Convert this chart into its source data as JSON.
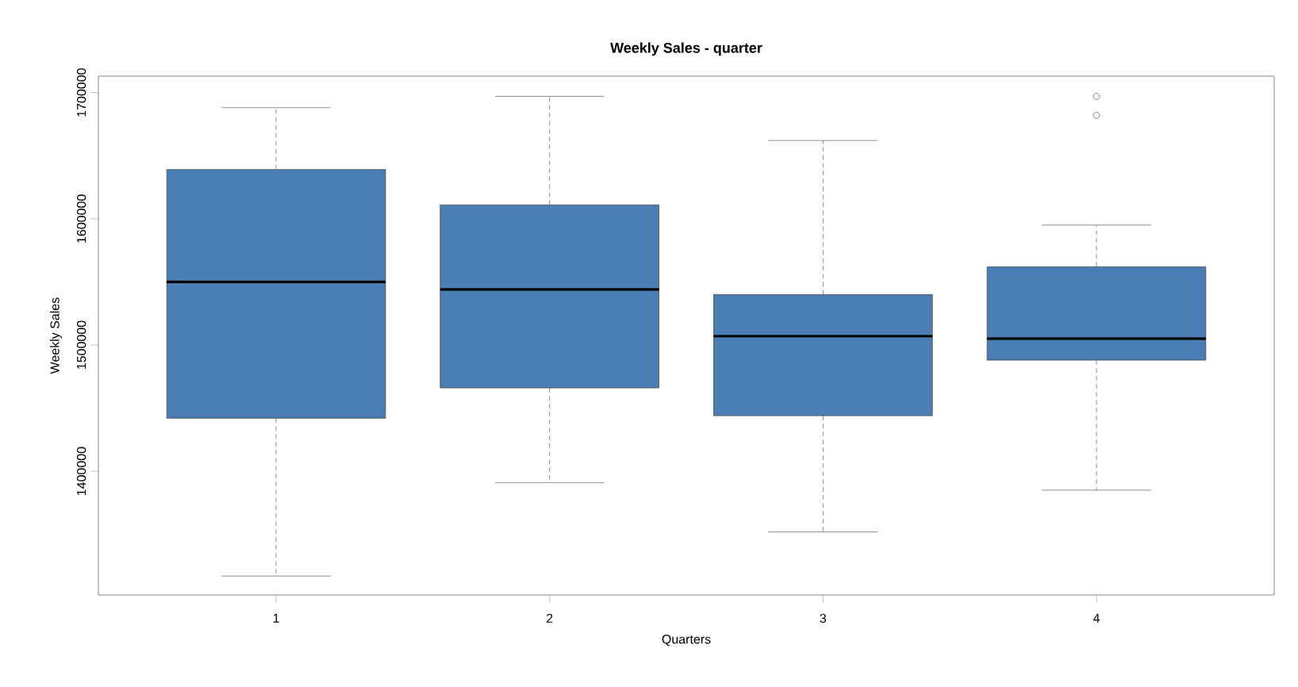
{
  "chart_data": {
    "type": "box",
    "title": "Weekly Sales - quarter",
    "xlabel": "Quarters",
    "ylabel": "Weekly Sales",
    "categories": [
      "1",
      "2",
      "3",
      "4"
    ],
    "color": "#4a7db3",
    "boxes": [
      {
        "low": 1317000,
        "q1": 1442000,
        "median": 1550000,
        "q3": 1639000,
        "high": 1688000
      },
      {
        "low": 1391000,
        "q1": 1466000,
        "median": 1544000,
        "q3": 1611000,
        "high": 1697000
      },
      {
        "low": 1352000,
        "q1": 1444000,
        "median": 1507000,
        "q3": 1540000,
        "high": 1662000
      },
      {
        "low": 1385000,
        "q1": 1488000,
        "median": 1505000,
        "q3": 1562000,
        "high": 1595000,
        "outliers": [
          1697000,
          1682000
        ]
      }
    ],
    "ylim": [
      1302000,
      1713000
    ],
    "yticks": [
      1400000,
      1500000,
      1600000,
      1700000
    ]
  }
}
